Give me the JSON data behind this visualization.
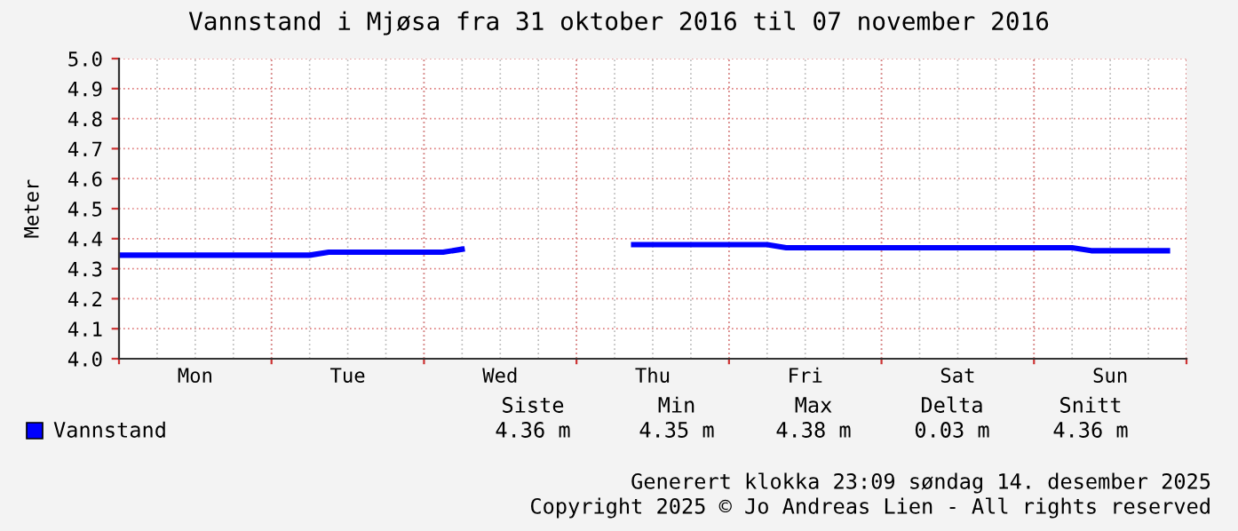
{
  "chart_data": {
    "type": "line",
    "title": "Vannstand i Mjøsa fra 31 oktober 2016 til 07 november 2016",
    "ylabel": "Meter",
    "categories": [
      null,
      null,
      null,
      null,
      "Mon",
      null,
      null,
      null,
      null,
      null,
      null,
      null,
      "Tue",
      null,
      null,
      null,
      null,
      null,
      null,
      null,
      "Wed",
      null,
      null,
      null,
      null,
      null,
      null,
      null,
      "Thu",
      null,
      null,
      null,
      null,
      null,
      null,
      null,
      "Fri",
      null,
      null,
      null,
      null,
      null,
      null,
      null,
      "Sat",
      null,
      null,
      null,
      null,
      null,
      null,
      null,
      "Sun",
      null,
      null,
      null,
      null
    ],
    "series": [
      {
        "name": "Vannstand",
        "color": "#0000ff",
        "values": [
          4.345,
          4.345,
          4.345,
          4.345,
          4.345,
          4.345,
          4.345,
          4.345,
          4.345,
          4.345,
          4.345,
          4.355,
          4.355,
          4.355,
          4.355,
          4.355,
          4.355,
          4.355,
          4.365,
          null,
          null,
          null,
          null,
          null,
          null,
          null,
          null,
          4.38,
          4.38,
          4.38,
          4.38,
          4.38,
          4.38,
          4.38,
          4.38,
          4.37,
          4.37,
          4.37,
          4.37,
          4.37,
          4.37,
          4.37,
          4.37,
          4.37,
          4.37,
          4.37,
          4.37,
          4.37,
          4.37,
          4.37,
          4.37,
          4.36,
          4.36,
          4.36,
          4.36,
          4.36,
          null
        ]
      }
    ],
    "ylim": [
      4.0,
      5.0
    ],
    "yticks": [
      {
        "value": 4.0,
        "label": "4.0"
      },
      4.1,
      4.2,
      4.3,
      4.4,
      4.5,
      4.6,
      4.7,
      4.8,
      4.9,
      {
        "value": 5.0,
        "label": "5.0"
      }
    ],
    "grid": true,
    "legend": "bottom",
    "line_style": "solid",
    "marker": "none",
    "annotations": [
      "Siste",
      "Min",
      "Max",
      "Delta",
      "Snitt",
      "4.36 m",
      "4.35 m",
      "4.38 m",
      "0.03 m",
      "4.36 m",
      "Generert klokka 23:09 søndag 14. desember 2025",
      "Copyright 2025 © Jo Andreas Lien - All rights reserved"
    ]
  }
}
